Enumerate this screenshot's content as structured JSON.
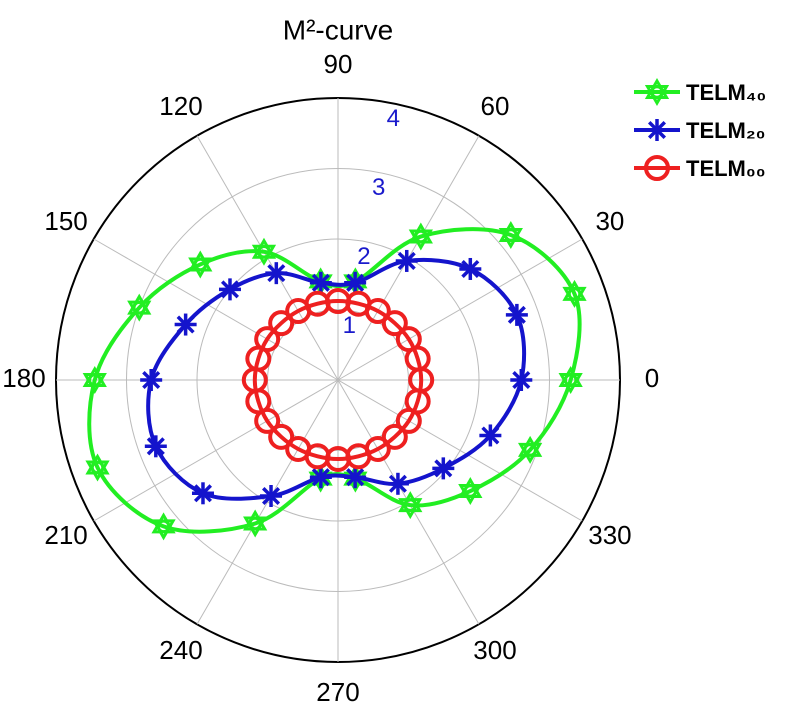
{
  "chart_data": {
    "type": "polar",
    "title": "M²-curve",
    "rlim": [
      0,
      4
    ],
    "rticks": [
      1,
      2,
      3,
      4
    ],
    "rtick_color": "#1a1acc",
    "thetaticks": [
      0,
      30,
      60,
      90,
      120,
      150,
      180,
      210,
      240,
      270,
      300,
      330
    ],
    "grid": true,
    "series": [
      {
        "name": "TELM₄₀",
        "color": "#22ee22",
        "marker": "star",
        "theta": [
          0,
          20,
          40,
          60,
          80,
          100,
          120,
          140,
          160,
          180,
          200,
          220,
          240,
          260,
          280,
          300,
          320,
          340
        ],
        "values": [
          3.3,
          3.57,
          3.2,
          2.35,
          1.42,
          1.42,
          2.1,
          2.55,
          3.0,
          3.45,
          3.63,
          3.23,
          2.35,
          1.42,
          1.42,
          2.05,
          2.45,
          2.9
        ]
      },
      {
        "name": "TELM₂₀",
        "color": "#1414cc",
        "marker": "asterisk",
        "theta": [
          0,
          20,
          40,
          60,
          80,
          100,
          120,
          140,
          160,
          180,
          200,
          220,
          240,
          260,
          280,
          300,
          320,
          340
        ],
        "values": [
          2.6,
          2.7,
          2.45,
          1.95,
          1.4,
          1.4,
          1.75,
          2.0,
          2.3,
          2.65,
          2.75,
          2.5,
          1.9,
          1.4,
          1.4,
          1.7,
          1.95,
          2.3
        ]
      },
      {
        "name": "TELM₀₀",
        "color": "#ee2020",
        "marker": "circle",
        "theta": [
          0,
          15,
          30,
          45,
          60,
          75,
          90,
          105,
          120,
          135,
          150,
          165,
          180,
          195,
          210,
          225,
          240,
          255,
          270,
          285,
          300,
          315,
          330,
          345
        ],
        "values": [
          1.18,
          1.17,
          1.16,
          1.14,
          1.13,
          1.12,
          1.12,
          1.12,
          1.13,
          1.14,
          1.16,
          1.17,
          1.18,
          1.17,
          1.16,
          1.14,
          1.13,
          1.12,
          1.12,
          1.12,
          1.13,
          1.14,
          1.16,
          1.17
        ]
      }
    ]
  }
}
